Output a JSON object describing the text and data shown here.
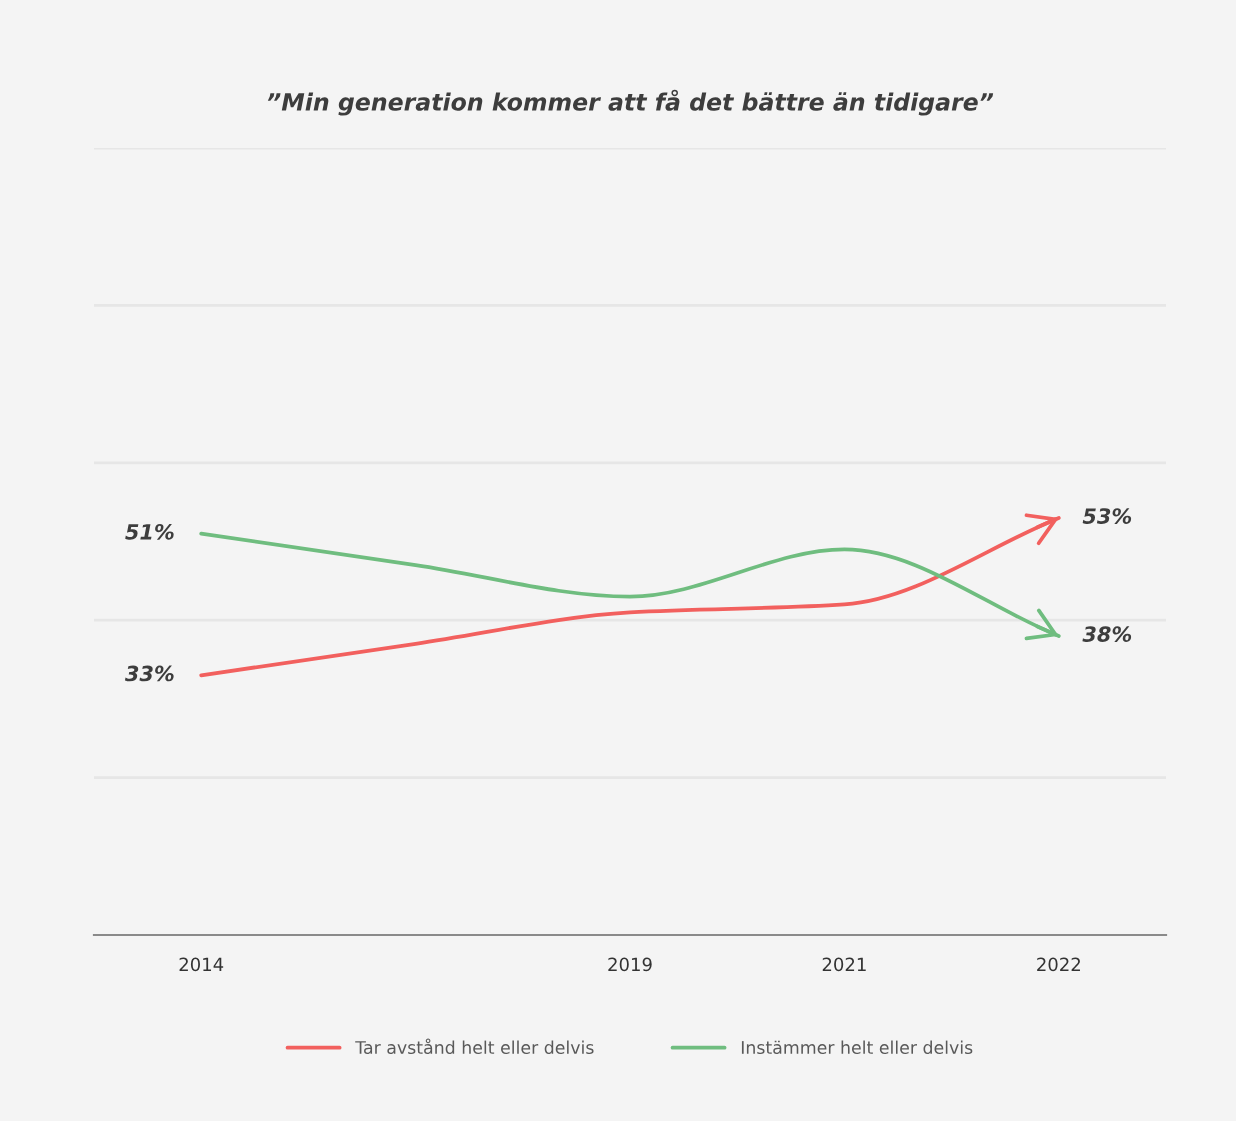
{
  "chart_data": {
    "type": "line",
    "title": "”Min generation kommer att få det bättre än tidigare”",
    "categories": [
      "2014",
      null,
      "2019",
      "2021",
      "2022"
    ],
    "series": [
      {
        "name": "Tar avstånd helt eller delvis",
        "color": "#f2605e",
        "values": [
          33,
          37,
          41,
          42,
          53
        ],
        "value_labels": [
          "33%",
          null,
          null,
          null,
          "53%"
        ]
      },
      {
        "name": "Instämmer helt eller delvis",
        "color": "#6fbd7f",
        "values": [
          51,
          47,
          43,
          49,
          38
        ],
        "value_labels": [
          "51%",
          null,
          null,
          null,
          "38%"
        ]
      }
    ],
    "ylim": [
      0,
      100
    ],
    "yticks": [
      {
        "value": 20,
        "label": null
      },
      {
        "value": 40,
        "label": null
      },
      {
        "value": 60,
        "label": null
      },
      {
        "value": 80,
        "label": null
      },
      {
        "value": 100,
        "label": null
      }
    ],
    "tick_labels": "x",
    "grid": "y",
    "legend": "bottom",
    "line_style": "solid"
  }
}
